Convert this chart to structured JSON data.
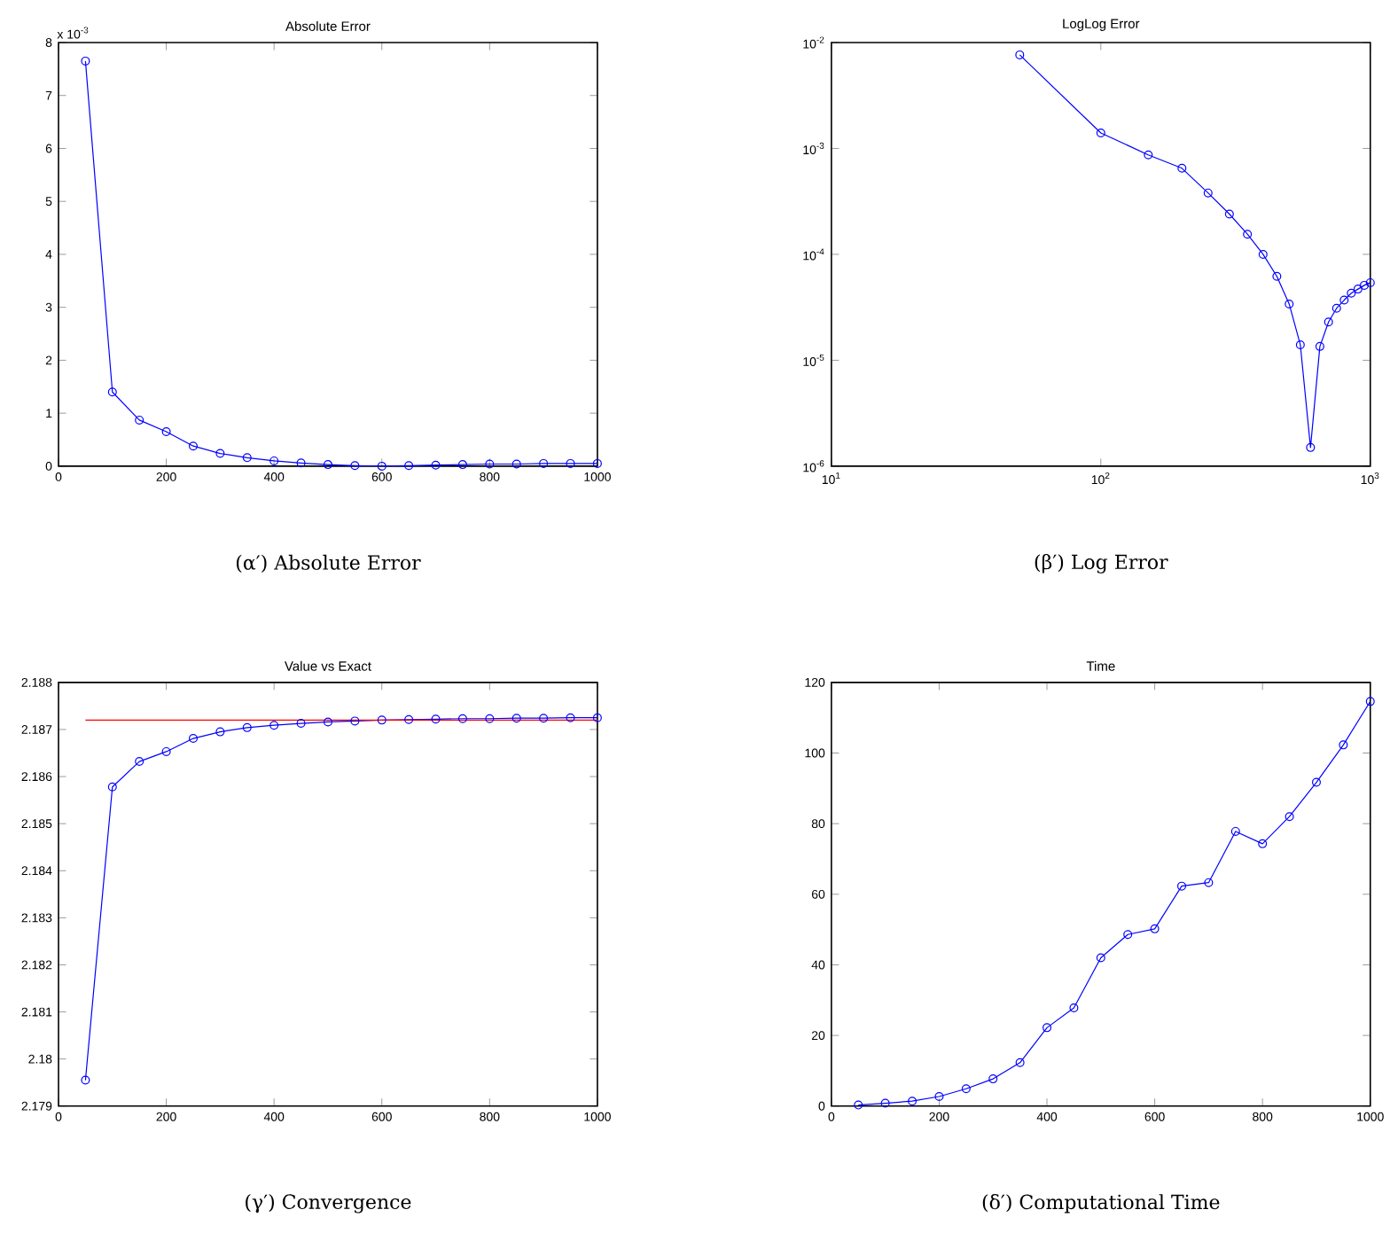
{
  "chart_data": [
    {
      "type": "line",
      "title": "Absolute Error",
      "x": [
        50,
        100,
        150,
        200,
        250,
        300,
        350,
        400,
        450,
        500,
        550,
        600,
        650,
        700,
        750,
        800,
        850,
        900,
        950,
        1000
      ],
      "series": [
        {
          "color": "#0000ff",
          "values": [
            7.65,
            1.4,
            0.87,
            0.65,
            0.38,
            0.24,
            0.16,
            0.1,
            0.06,
            0.03,
            0.01,
            0,
            0.01,
            0.02,
            0.03,
            0.04,
            0.04,
            0.05,
            0.05,
            0.05
          ]
        }
      ],
      "xlim": [
        0,
        1000
      ],
      "xticks": [
        0,
        200,
        400,
        600,
        800,
        1000
      ],
      "ylim": [
        0,
        8
      ],
      "yticks": [
        0,
        1,
        2,
        3,
        4,
        5,
        6,
        7,
        8
      ],
      "marker": "circle",
      "line_style": "solid",
      "grid": false,
      "annotations": [
        "x 10$^{-3}$",
        "(α′) Absolute Error"
      ]
    },
    {
      "type": "line",
      "title": "LogLog Error",
      "x": [
        50,
        100,
        150,
        200,
        250,
        300,
        350,
        400,
        450,
        500,
        550,
        600,
        650,
        700,
        750,
        800,
        850,
        900,
        950,
        1000
      ],
      "series": [
        {
          "color": "#0000ff",
          "values": [
            0.00765,
            0.0014,
            0.00087,
            0.00065,
            0.00038,
            0.00024,
            0.000155,
            0.0001,
            6.2e-05,
            3.4e-05,
            1.4e-05,
            1.5e-06,
            1.35e-05,
            2.3e-05,
            3.1e-05,
            3.7e-05,
            4.3e-05,
            4.7e-05,
            5.1e-05,
            5.4e-05
          ]
        }
      ],
      "log": "xy",
      "xlim": [
        10,
        1000
      ],
      "xticks": [
        {
          "value": 10,
          "label": "10$^{1}$"
        },
        {
          "value": 100,
          "label": "10$^{2}$"
        },
        {
          "value": 1000,
          "label": "10$^{3}$"
        }
      ],
      "ylim": [
        1e-06,
        0.01
      ],
      "yticks": [
        {
          "value": 1e-06,
          "label": "10$^{-6}$"
        },
        {
          "value": 1e-05,
          "label": "10$^{-5}$"
        },
        {
          "value": 0.0001,
          "label": "10$^{-4}$"
        },
        {
          "value": 0.001,
          "label": "10$^{-3}$"
        },
        {
          "value": 0.01,
          "label": "10$^{-2}$"
        }
      ],
      "marker": "circle",
      "line_style": "solid",
      "grid": false,
      "annotations": [
        "(β′) Log Error"
      ]
    },
    {
      "type": "line",
      "title": "Value vs Exact",
      "x": [
        50,
        100,
        150,
        200,
        250,
        300,
        350,
        400,
        450,
        500,
        550,
        600,
        650,
        700,
        750,
        800,
        850,
        900,
        950,
        1000
      ],
      "series": [
        {
          "color": "#0000ff",
          "values": [
            2.17955,
            2.18578,
            2.18632,
            2.18653,
            2.18681,
            2.18695,
            2.18704,
            2.18709,
            2.18713,
            2.18716,
            2.18718,
            2.1872,
            2.18721,
            2.18722,
            2.18723,
            2.18723,
            2.18724,
            2.18724,
            2.18725,
            2.18725
          ]
        },
        {
          "color": "#ff0000",
          "x": [
            50,
            1000
          ],
          "values": [
            2.1872,
            2.1872
          ],
          "marker": "none"
        }
      ],
      "xlim": [
        0,
        1000
      ],
      "xticks": [
        0,
        200,
        400,
        600,
        800,
        1000
      ],
      "ylim": [
        2.179,
        2.188
      ],
      "yticks": [
        2.179,
        2.18,
        2.181,
        2.182,
        2.183,
        2.184,
        2.185,
        2.186,
        2.187,
        2.188
      ],
      "marker": "circle",
      "line_style": "solid",
      "grid": false,
      "annotations": [
        "(γ′) Convergence"
      ]
    },
    {
      "type": "line",
      "title": "Time",
      "x": [
        50,
        100,
        150,
        200,
        250,
        300,
        350,
        400,
        450,
        500,
        550,
        600,
        650,
        700,
        750,
        800,
        850,
        900,
        950,
        1000
      ],
      "series": [
        {
          "color": "#0000ff",
          "values": [
            0.3,
            0.8,
            1.4,
            2.7,
            4.9,
            7.7,
            12.3,
            22.2,
            27.8,
            42,
            48.6,
            50.2,
            62.3,
            63.3,
            77.8,
            74.3,
            82,
            91.7,
            102.3,
            114.6
          ]
        }
      ],
      "xlim": [
        0,
        1000
      ],
      "xticks": [
        0,
        200,
        400,
        600,
        800,
        1000
      ],
      "ylim": [
        0,
        120
      ],
      "yticks": [
        0,
        20,
        40,
        60,
        80,
        100,
        120
      ],
      "marker": "circle",
      "line_style": "solid",
      "grid": false,
      "annotations": [
        "(δ′) Computational Time"
      ]
    }
  ]
}
